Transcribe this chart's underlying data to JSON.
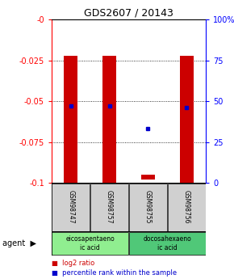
{
  "title": "GDS2607 / 20143",
  "samples": [
    "GSM98747",
    "GSM98757",
    "GSM98755",
    "GSM98756"
  ],
  "bar_bottoms": [
    -0.1,
    -0.1,
    -0.098,
    -0.1
  ],
  "bar_tops": [
    -0.022,
    -0.022,
    -0.095,
    -0.022
  ],
  "percentile_ranks": [
    47,
    47,
    33,
    46
  ],
  "agents": [
    {
      "label": "eicosapentaeno\nic acid",
      "samples": [
        0,
        1
      ],
      "color": "#90ee90"
    },
    {
      "label": "docosahexaeno\nic acid",
      "samples": [
        2,
        3
      ],
      "color": "#50c878"
    }
  ],
  "ylim_left": [
    -0.1,
    0
  ],
  "ylim_right": [
    0,
    100
  ],
  "yticks_left": [
    0,
    -0.025,
    -0.05,
    -0.075,
    -0.1
  ],
  "ytick_labels_left": [
    "-0",
    "-0.025",
    "-0.05",
    "-0.075",
    "-0.1"
  ],
  "yticks_right": [
    0,
    25,
    50,
    75,
    100
  ],
  "ytick_labels_right": [
    "0",
    "25",
    "50",
    "75",
    "100%"
  ],
  "bar_color": "#cc0000",
  "dot_color": "#0000cc",
  "legend_items": [
    {
      "label": "log2 ratio",
      "color": "#cc0000"
    },
    {
      "label": "percentile rank within the sample",
      "color": "#0000cc"
    }
  ]
}
